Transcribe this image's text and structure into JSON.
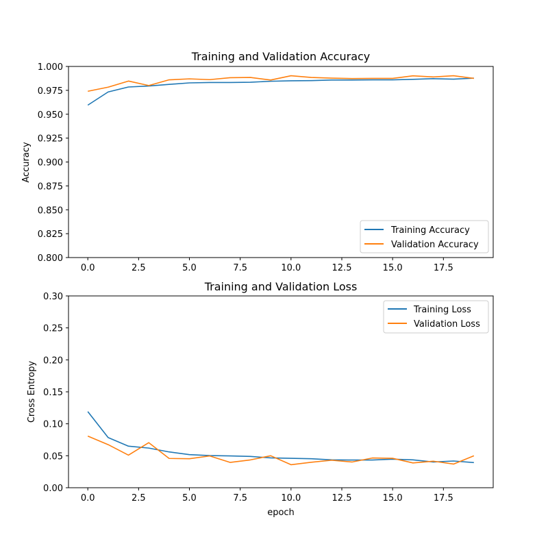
{
  "chart_data": [
    {
      "type": "line",
      "title": "Training and Validation Accuracy",
      "xlabel": "",
      "ylabel": "Accuracy",
      "xlim": [
        -0.95,
        19.95
      ],
      "ylim": [
        0.8,
        1.0
      ],
      "xticks": [
        0.0,
        2.5,
        5.0,
        7.5,
        10.0,
        12.5,
        15.0,
        17.5
      ],
      "xtick_labels": [
        "0.0",
        "2.5",
        "5.0",
        "7.5",
        "10.0",
        "12.5",
        "15.0",
        "17.5"
      ],
      "yticks": [
        0.8,
        0.825,
        0.85,
        0.875,
        0.9,
        0.925,
        0.95,
        0.975,
        1.0
      ],
      "ytick_labels": [
        "0.800",
        "0.825",
        "0.850",
        "0.875",
        "0.900",
        "0.925",
        "0.950",
        "0.975",
        "1.000"
      ],
      "legend_position": "bottom-right",
      "x": [
        0,
        1,
        2,
        3,
        4,
        5,
        6,
        7,
        8,
        9,
        10,
        11,
        12,
        13,
        14,
        15,
        16,
        17,
        18,
        19
      ],
      "series": [
        {
          "name": "Training Accuracy",
          "color": "#1f77b4",
          "values": [
            0.9595,
            0.9733,
            0.9785,
            0.9795,
            0.9812,
            0.9828,
            0.9832,
            0.9832,
            0.9835,
            0.9845,
            0.985,
            0.9852,
            0.9858,
            0.9858,
            0.986,
            0.986,
            0.9865,
            0.9872,
            0.9867,
            0.9878
          ]
        },
        {
          "name": "Validation Accuracy",
          "color": "#ff7f0e",
          "values": [
            0.974,
            0.9783,
            0.9847,
            0.98,
            0.986,
            0.987,
            0.9862,
            0.9882,
            0.9885,
            0.9858,
            0.9903,
            0.9885,
            0.9878,
            0.9873,
            0.9875,
            0.9875,
            0.9902,
            0.989,
            0.9903,
            0.9875
          ]
        }
      ]
    },
    {
      "type": "line",
      "title": "Training and Validation Loss",
      "xlabel": "epoch",
      "ylabel": "Cross Entropy",
      "xlim": [
        -0.95,
        19.95
      ],
      "ylim": [
        0.0,
        0.3
      ],
      "xticks": [
        0.0,
        2.5,
        5.0,
        7.5,
        10.0,
        12.5,
        15.0,
        17.5
      ],
      "xtick_labels": [
        "0.0",
        "2.5",
        "5.0",
        "7.5",
        "10.0",
        "12.5",
        "15.0",
        "17.5"
      ],
      "yticks": [
        0.0,
        0.05,
        0.1,
        0.15,
        0.2,
        0.25,
        0.3
      ],
      "ytick_labels": [
        "0.00",
        "0.05",
        "0.10",
        "0.15",
        "0.20",
        "0.25",
        "0.30"
      ],
      "legend_position": "top-right",
      "x": [
        0,
        1,
        2,
        3,
        4,
        5,
        6,
        7,
        8,
        9,
        10,
        11,
        12,
        13,
        14,
        15,
        16,
        17,
        18,
        19
      ],
      "series": [
        {
          "name": "Training Loss",
          "color": "#1f77b4",
          "values": [
            0.119,
            0.0785,
            0.065,
            0.062,
            0.056,
            0.0518,
            0.0503,
            0.0497,
            0.0489,
            0.0467,
            0.046,
            0.0453,
            0.0436,
            0.0433,
            0.0433,
            0.0447,
            0.0436,
            0.0402,
            0.0418,
            0.0393
          ]
        },
        {
          "name": "Validation Loss",
          "color": "#ff7f0e",
          "values": [
            0.0808,
            0.0674,
            0.051,
            0.0705,
            0.0458,
            0.0453,
            0.0497,
            0.0396,
            0.0435,
            0.05,
            0.036,
            0.0398,
            0.043,
            0.0402,
            0.0465,
            0.046,
            0.0388,
            0.0415,
            0.037,
            0.05
          ]
        }
      ]
    }
  ]
}
